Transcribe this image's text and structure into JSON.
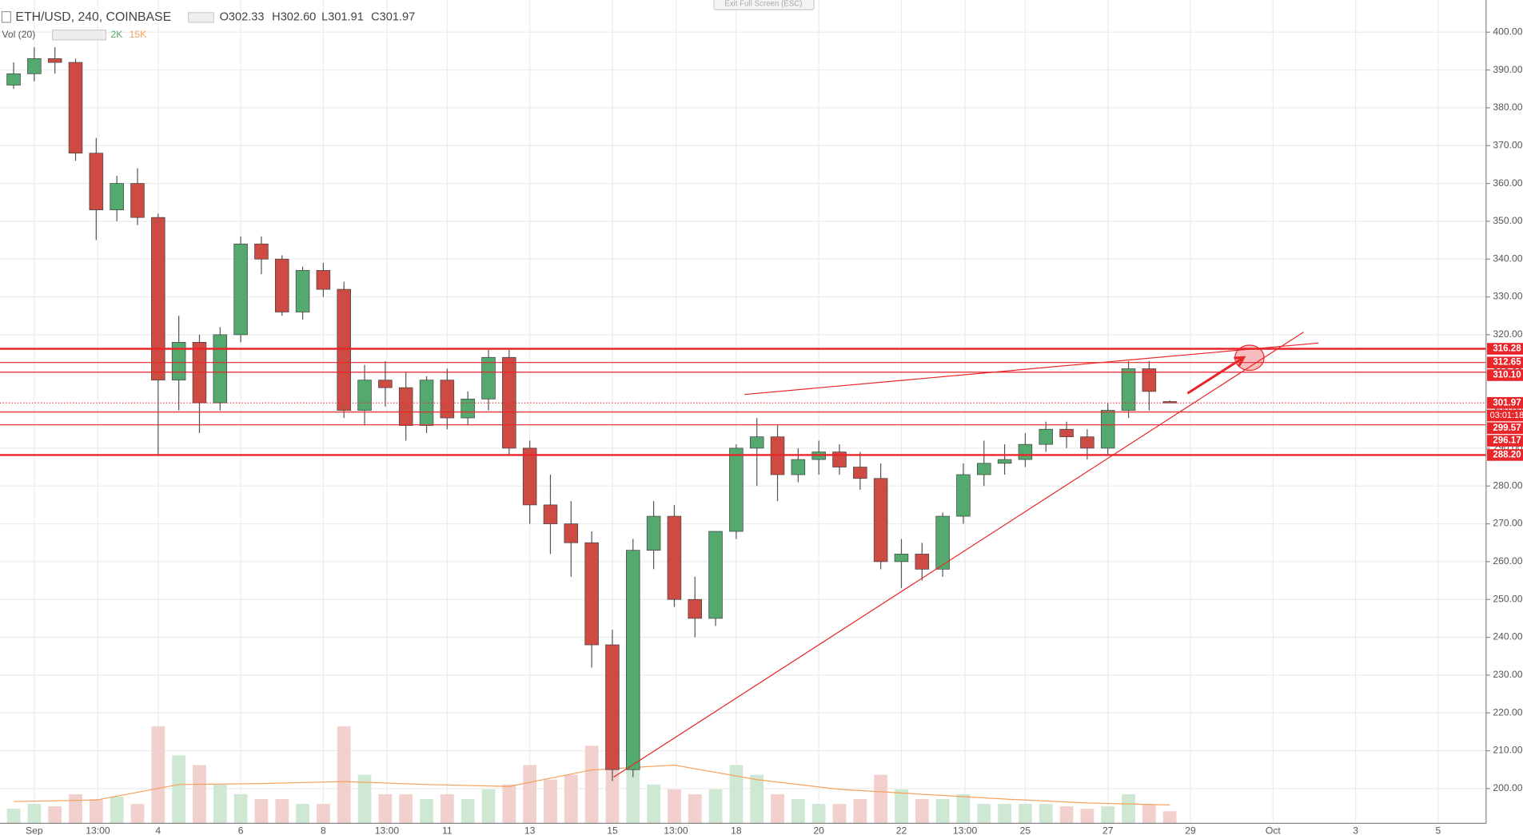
{
  "chart_data": {
    "type": "candlestick",
    "title": "ETH/USD, 240, COINBASE",
    "ohlc_labels": [
      "O302.33",
      "H302.60",
      "L301.91",
      "C301.97"
    ],
    "volume_title": "Vol (20)",
    "volume_labels": [
      "2K",
      "15K"
    ],
    "button": "Exit Full Screen (ESC)",
    "x": [
      0.5,
      1,
      1.5,
      2,
      2.5,
      3,
      3.5,
      4,
      4.5,
      5,
      5.5,
      6,
      6.5,
      7,
      7.5,
      8,
      8.5,
      9,
      9.5,
      10,
      10.5,
      11,
      11.5,
      12,
      12.5,
      13,
      13.5,
      14,
      14.5,
      15,
      15.5,
      16,
      16.5,
      17,
      17.5,
      18,
      18.5,
      19,
      19.5,
      20,
      20.5,
      21,
      21.5,
      22,
      22.5,
      23,
      23.5,
      24,
      24.5,
      25,
      25.5,
      26,
      26.5,
      27,
      27.5,
      28,
      28.5
    ],
    "open": [
      386,
      389,
      393,
      392,
      368,
      353,
      360,
      351,
      308,
      318,
      302,
      320,
      344,
      340,
      326,
      337,
      332,
      300,
      308,
      306,
      296,
      308,
      298,
      303,
      314,
      290,
      275,
      270,
      265,
      238,
      205,
      263,
      272,
      250,
      245,
      268,
      290,
      293,
      283,
      287,
      289,
      285,
      282,
      260,
      262,
      258,
      272,
      283,
      286,
      287,
      291,
      295,
      293,
      290,
      300,
      311,
      302.33
    ],
    "high": [
      392,
      396,
      396,
      393,
      372,
      362,
      364,
      352,
      325,
      320,
      322,
      346,
      346,
      341,
      338,
      339,
      334,
      312,
      313,
      310,
      309,
      311,
      305,
      316,
      316,
      292,
      283,
      276,
      268,
      242,
      266,
      276,
      275,
      256,
      268,
      291,
      298,
      296,
      290,
      292,
      291,
      289,
      286,
      266,
      265,
      273,
      286,
      292,
      291,
      294,
      297,
      297,
      295,
      302,
      313,
      313,
      302.6
    ],
    "low": [
      385,
      387,
      389,
      366,
      345,
      350,
      349,
      288,
      300,
      294,
      300,
      318,
      336,
      325,
      324,
      330,
      298,
      296,
      301,
      292,
      294,
      295,
      296,
      300,
      288,
      270,
      262,
      256,
      232,
      202,
      203,
      258,
      248,
      240,
      243,
      266,
      280,
      276,
      281,
      283,
      283,
      279,
      258,
      253,
      255,
      256,
      270,
      280,
      283,
      285,
      289,
      290,
      287,
      288,
      298,
      300,
      301.91
    ],
    "close": [
      389,
      393,
      392,
      368,
      353,
      360,
      351,
      308,
      318,
      302,
      320,
      344,
      340,
      326,
      337,
      332,
      300,
      308,
      306,
      296,
      308,
      298,
      303,
      314,
      290,
      275,
      270,
      265,
      238,
      205,
      263,
      272,
      250,
      245,
      268,
      290,
      293,
      283,
      287,
      289,
      285,
      282,
      260,
      262,
      258,
      272,
      283,
      286,
      287,
      291,
      295,
      293,
      290,
      300,
      311,
      305,
      301.97
    ],
    "volume": [
      3000,
      4000,
      3500,
      6000,
      5000,
      5500,
      4000,
      20000,
      14000,
      12000,
      8000,
      6000,
      5000,
      5000,
      4000,
      4000,
      20000,
      10000,
      6000,
      6000,
      5000,
      6000,
      5000,
      7000,
      8000,
      12000,
      9000,
      10000,
      16000,
      25000,
      14000,
      8000,
      7000,
      6000,
      7000,
      12000,
      10000,
      6000,
      5000,
      4000,
      4000,
      5000,
      10000,
      7000,
      5000,
      5000,
      6000,
      4000,
      4000,
      4000,
      4000,
      3500,
      3000,
      3500,
      6000,
      4000,
      2500
    ],
    "vol_ma": {
      "x": [
        0.5,
        2.5,
        4.5,
        6.5,
        8.5,
        10.5,
        12.5,
        14.5,
        16.5,
        18.5,
        20.5,
        22.5,
        24.5,
        26.5,
        28.5
      ],
      "values": [
        4500,
        4800,
        8000,
        8200,
        8600,
        8000,
        7600,
        11000,
        12000,
        9000,
        7000,
        6000,
        5000,
        4200,
        3800
      ],
      "color": "#f5a25d"
    },
    "up_color": "#53a96e",
    "down_color": "#cd4b42",
    "vol_up_color": "#cfe8d3",
    "vol_down_color": "#f1d0cd",
    "xlim": [
      0.17,
      36.16
    ],
    "ylim": [
      190.8,
      408.5
    ],
    "xticks": [
      {
        "value": 1,
        "label": "Sep"
      },
      {
        "value": 2.54,
        "label": "13:00"
      },
      4,
      6,
      8,
      {
        "value": 9.54,
        "label": "13:00"
      },
      11,
      13,
      15,
      {
        "value": 16.54,
        "label": "13:00"
      },
      18,
      20,
      22,
      {
        "value": 23.54,
        "label": "13:00"
      },
      25,
      27,
      29,
      {
        "value": 31,
        "label": "Oct"
      },
      {
        "value": 33,
        "label": "3"
      },
      {
        "value": 35,
        "label": "5"
      }
    ],
    "yticks": [
      {
        "value": 200,
        "label": "200.00"
      },
      {
        "value": 210,
        "label": "210.00"
      },
      {
        "value": 220,
        "label": "220.00"
      },
      {
        "value": 230,
        "label": "230.00"
      },
      {
        "value": 240,
        "label": "240.00"
      },
      {
        "value": 250,
        "label": "250.00"
      },
      {
        "value": 260,
        "label": "260.00"
      },
      {
        "value": 270,
        "label": "270.00"
      },
      {
        "value": 280,
        "label": "280.00"
      },
      {
        "value": 290,
        "label": "290.00"
      },
      {
        "value": 300,
        "label": "300.00"
      },
      {
        "value": 310,
        "label": "310.00"
      },
      {
        "value": 320,
        "label": "320.00"
      },
      {
        "value": 330,
        "label": "330.00"
      },
      {
        "value": 340,
        "label": "340.00"
      },
      {
        "value": 350,
        "label": "350.00"
      },
      {
        "value": 360,
        "label": "360.00"
      },
      {
        "value": 370,
        "label": "370.00"
      },
      {
        "value": 380,
        "label": "380.00"
      },
      {
        "value": 390,
        "label": "390.00"
      },
      {
        "value": 400,
        "label": "400.00"
      }
    ],
    "grid": true,
    "levels": [
      {
        "value": 316.28,
        "label": "316.28"
      },
      {
        "value": 312.65,
        "label": "312.65"
      },
      {
        "value": 310.1,
        "label": "310.10"
      },
      {
        "value": 299.57,
        "label": "299.57"
      },
      {
        "value": 296.17,
        "label": "296.17"
      },
      {
        "value": 288.2,
        "label": "288.20"
      }
    ],
    "current": {
      "value": 301.97,
      "label": "301.97",
      "countdown": "03:01:18"
    },
    "line_color": "#e8262a",
    "trendlines": [
      [
        [
          15.03,
          203
        ],
        [
          31.74,
          320.7
        ]
      ],
      [
        [
          18.2,
          304.2
        ],
        [
          32.1,
          317.8
        ]
      ]
    ],
    "arrow": [
      [
        28.93,
        304.5
      ],
      [
        30.29,
        314
      ]
    ],
    "circle": [
      30.43,
      313.9
    ]
  }
}
